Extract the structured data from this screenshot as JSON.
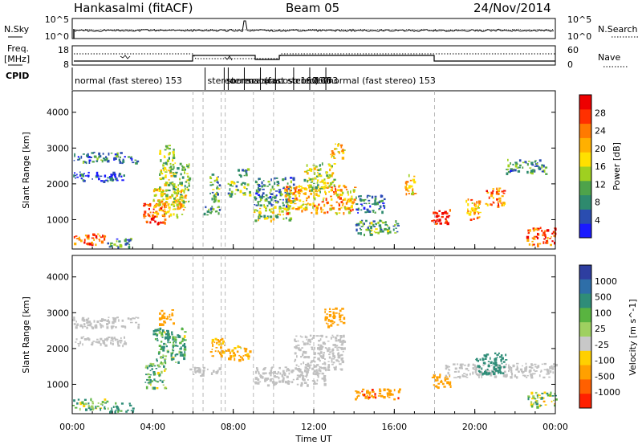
{
  "header": {
    "station": "Hankasalmi (fitACF)",
    "beam": "Beam 05",
    "date": "24/Nov/2014"
  },
  "noise_panel": {
    "left_label": "N.Sky",
    "right_label": "N.Search",
    "y_ticks_left": [
      "10^5",
      "10^0"
    ],
    "y_ticks_right": [
      "10^5",
      "10^0"
    ]
  },
  "freq_panel": {
    "left_label": "Freq.",
    "left_unit": "[MHz]",
    "right_label": "Nave",
    "y_ticks_left": [
      "18",
      "8"
    ],
    "y_ticks_right": [
      "60",
      "0"
    ]
  },
  "cpid": {
    "label": "CPID",
    "segments": [
      {
        "t": 0.0,
        "text": "normal (fast stereo) 153"
      },
      {
        "t": 6.6,
        "text": "stereo"
      },
      {
        "t": 7.55,
        "text": "stereoscan"
      },
      {
        "t": 8.55,
        "text": "scan"
      },
      {
        "t": 9.35,
        "text": "scan"
      },
      {
        "t": 7.75,
        "text": "normal (fast stereo) 153"
      },
      {
        "t": 10.1,
        "text": "cosc 160"
      },
      {
        "t": 11.0,
        "text": "con 160"
      },
      {
        "t": 11.8,
        "text": "160"
      },
      {
        "t": 12.6,
        "text": "normal (fast stereo) 153"
      }
    ]
  },
  "axes": {
    "x_label": "Time UT",
    "x_ticks": [
      "00:00",
      "04:00",
      "08:00",
      "12:00",
      "16:00",
      "20:00",
      "00:00"
    ],
    "y_label": "Slant Range [km]",
    "y_ticks": [
      "1000",
      "2000",
      "3000",
      "4000"
    ]
  },
  "power_colorbar": {
    "title": "Power [dB]",
    "ticks": [
      "4",
      "8",
      "12",
      "16",
      "20",
      "24",
      "28"
    ],
    "colors": [
      "#1a1aff",
      "#2a4db0",
      "#2e8a6e",
      "#4ea34a",
      "#9fd020",
      "#ffe000",
      "#ffb000",
      "#ff7a00",
      "#ff3000",
      "#ee0000"
    ]
  },
  "velocity_colorbar": {
    "title": "Velocity [m s^-1]",
    "ticks": [
      "1000",
      "500",
      "100",
      "25",
      "-25",
      "-100",
      "-500",
      "-1000"
    ],
    "colors": [
      "#2e3ea0",
      "#2e6ea8",
      "#2f8d78",
      "#59b440",
      "#9fd060",
      "#c8c8c8",
      "#ffd000",
      "#ffa000",
      "#ff6000",
      "#ff2000"
    ],
    "ground_scatter_color": "#c0c0c0"
  },
  "chart_data": {
    "type": "heatmap",
    "title": "Hankasalmi (fitACF) Beam 05 24/Nov/2014",
    "xlabel": "Time UT",
    "ylabel": "Slant Range [km]",
    "xlim": [
      0,
      24
    ],
    "ylim": [
      180,
      4600
    ],
    "x_unit": "hours UT",
    "mode_change_times": [
      6.0,
      6.5,
      7.4,
      7.6,
      9.0,
      10.0,
      12.0,
      18.0
    ],
    "power": {
      "name": "Power [dB]",
      "range": [
        0,
        30
      ],
      "regions": [
        {
          "t": [
            0.0,
            2.4
          ],
          "r": [
            2620,
            2900
          ],
          "level": 8
        },
        {
          "t": [
            2.4,
            3.3
          ],
          "r": [
            2600,
            2780
          ],
          "level": 6
        },
        {
          "t": [
            0.0,
            2.8
          ],
          "r": [
            2100,
            2350
          ],
          "level": 4
        },
        {
          "t": [
            0.0,
            1.6
          ],
          "r": [
            320,
            620
          ],
          "level": 24
        },
        {
          "t": [
            1.6,
            3.0
          ],
          "r": [
            250,
            500
          ],
          "level": 8
        },
        {
          "t": [
            3.5,
            4.6
          ],
          "r": [
            900,
            1500
          ],
          "level": 27
        },
        {
          "t": [
            4.0,
            5.6
          ],
          "r": [
            1100,
            1900
          ],
          "level": 18
        },
        {
          "t": [
            4.3,
            5.0
          ],
          "r": [
            1700,
            3100
          ],
          "level": 14
        },
        {
          "t": [
            5.0,
            5.8
          ],
          "r": [
            1400,
            2600
          ],
          "level": 12
        },
        {
          "t": [
            6.5,
            7.3
          ],
          "r": [
            1150,
            1450
          ],
          "level": 9
        },
        {
          "t": [
            6.8,
            7.3
          ],
          "r": [
            1500,
            2300
          ],
          "level": 10
        },
        {
          "t": [
            7.7,
            8.8
          ],
          "r": [
            1700,
            2100
          ],
          "level": 11
        },
        {
          "t": [
            8.2,
            8.8
          ],
          "r": [
            2200,
            2450
          ],
          "level": 8
        },
        {
          "t": [
            9.0,
            10.8
          ],
          "r": [
            1000,
            1400
          ],
          "level": 14
        },
        {
          "t": [
            9.0,
            11.0
          ],
          "r": [
            1400,
            2200
          ],
          "level": 8
        },
        {
          "t": [
            10.5,
            14.0
          ],
          "r": [
            1200,
            2000
          ],
          "level": 20
        },
        {
          "t": [
            11.5,
            13.0
          ],
          "r": [
            1800,
            2600
          ],
          "level": 14
        },
        {
          "t": [
            12.8,
            13.5
          ],
          "r": [
            2700,
            3150
          ],
          "level": 18
        },
        {
          "t": [
            14.0,
            15.5
          ],
          "r": [
            1200,
            1700
          ],
          "level": 6
        },
        {
          "t": [
            14.0,
            16.2
          ],
          "r": [
            600,
            1000
          ],
          "level": 10
        },
        {
          "t": [
            17.8,
            18.8
          ],
          "r": [
            900,
            1300
          ],
          "level": 27
        },
        {
          "t": [
            16.5,
            17.0
          ],
          "r": [
            1700,
            2300
          ],
          "level": 18
        },
        {
          "t": [
            19.5,
            20.3
          ],
          "r": [
            1000,
            1600
          ],
          "level": 20
        },
        {
          "t": [
            20.5,
            21.5
          ],
          "r": [
            1400,
            1900
          ],
          "level": 22
        },
        {
          "t": [
            21.5,
            23.5
          ],
          "r": [
            2300,
            2700
          ],
          "level": 8
        },
        {
          "t": [
            22.5,
            24.0
          ],
          "r": [
            300,
            800
          ],
          "level": 24
        }
      ]
    },
    "velocity": {
      "name": "Velocity [m s^-1]",
      "range": [
        -1000,
        1000
      ],
      "regions": [
        {
          "t": [
            0.0,
            3.3
          ],
          "r": [
            2600,
            2900
          ],
          "value": 0,
          "ground_scatter": true
        },
        {
          "t": [
            0.0,
            2.8
          ],
          "r": [
            2100,
            2350
          ],
          "value": 0,
          "ground_scatter": true
        },
        {
          "t": [
            0.0,
            1.8
          ],
          "r": [
            320,
            620
          ],
          "value": 50
        },
        {
          "t": [
            1.8,
            3.0
          ],
          "r": [
            250,
            500
          ],
          "value": 200
        },
        {
          "t": [
            3.6,
            4.6
          ],
          "r": [
            900,
            1600
          ],
          "value": 80
        },
        {
          "t": [
            4.0,
            5.6
          ],
          "r": [
            1600,
            2600
          ],
          "value": 120
        },
        {
          "t": [
            4.3,
            5.0
          ],
          "r": [
            2700,
            3100
          ],
          "value": -300
        },
        {
          "t": [
            5.8,
            7.3
          ],
          "r": [
            1250,
            1500
          ],
          "value": 0,
          "ground_scatter": true
        },
        {
          "t": [
            6.8,
            7.6
          ],
          "r": [
            1800,
            2300
          ],
          "value": -200
        },
        {
          "t": [
            7.7,
            8.8
          ],
          "r": [
            1700,
            2100
          ],
          "value": -150
        },
        {
          "t": [
            9.0,
            12.5
          ],
          "r": [
            1000,
            1500
          ],
          "value": 0,
          "ground_scatter": true
        },
        {
          "t": [
            11.0,
            13.5
          ],
          "r": [
            1400,
            2400
          ],
          "value": 0,
          "ground_scatter": true
        },
        {
          "t": [
            12.5,
            13.5
          ],
          "r": [
            2600,
            3150
          ],
          "value": -250
        },
        {
          "t": [
            14.0,
            16.3
          ],
          "r": [
            600,
            900
          ],
          "value": -400
        },
        {
          "t": [
            17.8,
            18.8
          ],
          "r": [
            900,
            1300
          ],
          "value": -300
        },
        {
          "t": [
            18.5,
            24.0
          ],
          "r": [
            1200,
            1600
          ],
          "value": 0,
          "ground_scatter": true
        },
        {
          "t": [
            20.0,
            21.5
          ],
          "r": [
            1300,
            1900
          ],
          "value": 250
        },
        {
          "t": [
            22.5,
            24.0
          ],
          "r": [
            400,
            800
          ],
          "value": 30
        }
      ]
    }
  }
}
